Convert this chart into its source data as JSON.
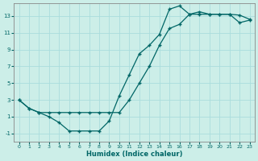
{
  "xlabel": "Humidex (Indice chaleur)",
  "bg_color": "#cceee8",
  "grid_color": "#aadddd",
  "line_color": "#006666",
  "xlim": [
    -0.5,
    23.5
  ],
  "ylim": [
    -2,
    14.5
  ],
  "xticks": [
    0,
    1,
    2,
    3,
    4,
    5,
    6,
    7,
    8,
    9,
    10,
    11,
    12,
    13,
    14,
    15,
    16,
    17,
    18,
    19,
    20,
    21,
    22,
    23
  ],
  "yticks": [
    -1,
    1,
    3,
    5,
    7,
    9,
    11,
    13
  ],
  "line1_x": [
    0,
    1,
    2,
    3,
    4,
    5,
    6,
    7,
    8,
    9,
    10,
    11,
    12,
    13,
    14,
    15,
    16,
    17,
    18,
    19,
    20,
    21,
    22,
    23
  ],
  "line1_y": [
    3.0,
    2.0,
    1.5,
    1.0,
    0.3,
    -0.7,
    -0.7,
    -0.7,
    -0.7,
    0.5,
    3.5,
    6.0,
    8.5,
    9.5,
    10.8,
    13.8,
    14.2,
    13.2,
    13.2,
    13.2,
    13.2,
    13.2,
    13.1,
    12.6
  ],
  "line2_x": [
    0,
    1,
    2,
    3,
    4,
    5,
    6,
    7,
    8,
    9,
    10,
    11,
    12,
    13,
    14,
    15,
    16,
    17,
    18,
    19,
    20,
    21,
    22,
    23
  ],
  "line2_y": [
    3.0,
    2.0,
    1.5,
    1.5,
    1.5,
    1.5,
    1.5,
    1.5,
    1.5,
    1.5,
    1.5,
    3.0,
    5.0,
    7.0,
    9.5,
    11.5,
    12.0,
    13.2,
    13.5,
    13.2,
    13.2,
    13.2,
    12.2,
    12.5
  ]
}
